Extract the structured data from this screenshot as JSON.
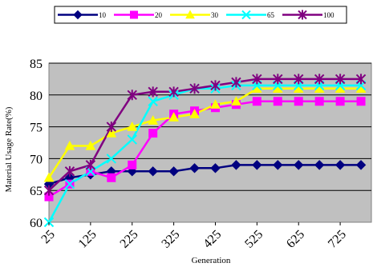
{
  "chart_data": {
    "type": "line",
    "title": "",
    "xlabel": "Generation",
    "ylabel": "Material Usage Rate(%)",
    "x": [
      25,
      75,
      125,
      175,
      225,
      275,
      325,
      375,
      425,
      475,
      525,
      575,
      625,
      675,
      725,
      775
    ],
    "xticks": [
      "25",
      "125",
      "225",
      "325",
      "425",
      "525",
      "625",
      "725"
    ],
    "yticks": [
      "60",
      "65",
      "70",
      "75",
      "80",
      "85"
    ],
    "ylim": [
      60,
      85
    ],
    "grid": true,
    "plot_background": "#c0c0c0",
    "legend_position": "top",
    "series": [
      {
        "name": "10",
        "color": "#000080",
        "marker": "diamond",
        "values": [
          66,
          67,
          67.5,
          68,
          68,
          68,
          68,
          68.5,
          68.5,
          69,
          69,
          69,
          69,
          69,
          69,
          69
        ]
      },
      {
        "name": "20",
        "color": "#ff00ff",
        "marker": "square",
        "values": [
          64,
          66,
          68,
          67,
          69,
          74,
          77,
          77.5,
          78,
          78.5,
          79,
          79,
          79,
          79,
          79,
          79
        ]
      },
      {
        "name": "30",
        "color": "#ffff00",
        "marker": "triangle",
        "values": [
          67,
          72,
          72,
          74,
          75,
          76,
          76.5,
          77,
          78.5,
          79,
          81,
          81,
          81,
          81,
          81,
          81
        ]
      },
      {
        "name": "65",
        "color": "#00ffff",
        "marker": "x",
        "values": [
          60,
          66,
          68,
          70,
          73,
          79,
          80,
          81,
          81,
          81.5,
          81.5,
          81.5,
          81.5,
          81.5,
          81.5,
          81.5
        ]
      },
      {
        "name": "100",
        "color": "#800080",
        "marker": "star",
        "values": [
          65,
          68,
          69,
          75,
          80,
          80.5,
          80.5,
          81,
          81.5,
          82,
          82.5,
          82.5,
          82.5,
          82.5,
          82.5,
          82.5
        ]
      }
    ]
  }
}
